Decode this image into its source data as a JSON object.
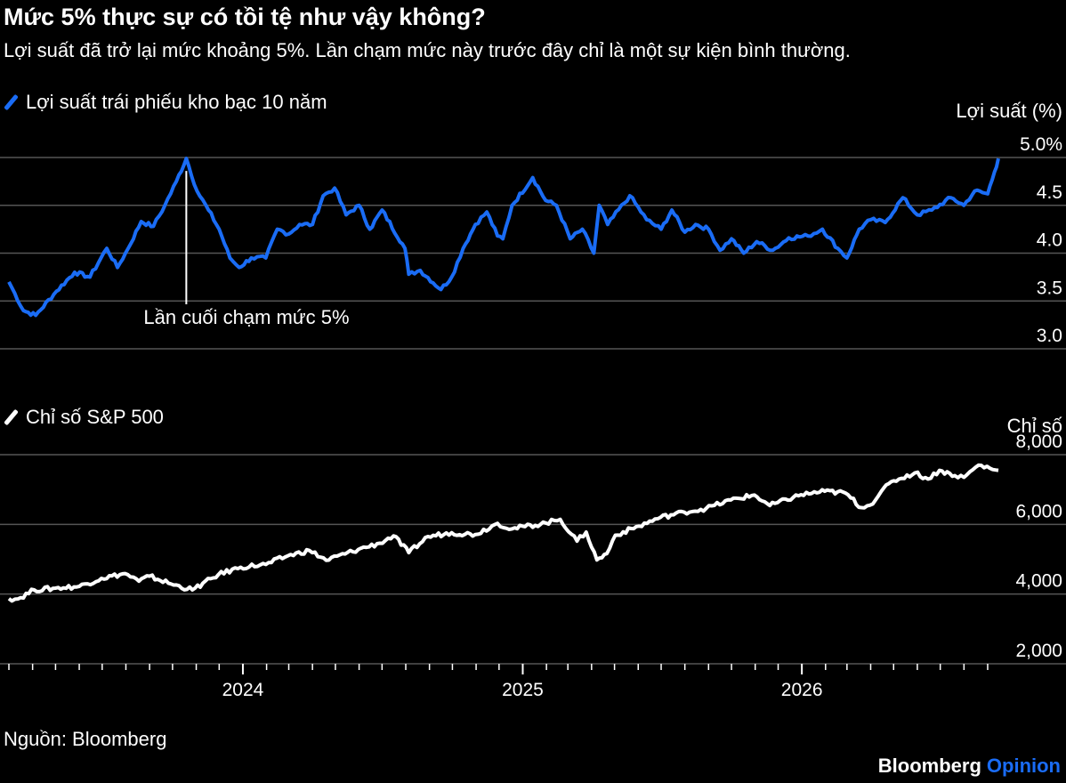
{
  "title": "Mức 5% thực sự có tồi tệ như vậy không?",
  "subtitle": "Lợi suất đã trở lại mức khoảng 5%. Lần chạm mức này trước đây chỉ là một sự kiện bình thường.",
  "source": "Nguồn: Bloomberg",
  "brand": {
    "name": "Bloomberg",
    "suffix": "Opinion"
  },
  "colors": {
    "yield_line": "#1a6cf5",
    "spx_line": "#ffffff",
    "brand_accent": "#1a6cf5",
    "grid": "#555555"
  },
  "x_axis": {
    "ticks": [
      "2024",
      "2025",
      "2026"
    ]
  },
  "chart_data": [
    {
      "type": "line",
      "legend": "Lợi suất trái phiếu kho bạc 10 năm",
      "ylabel": "Lợi suất (%)",
      "ylim": [
        3.0,
        5.0
      ],
      "yticks": [
        "3.0",
        "3.5",
        "4.0",
        "4.5",
        "5.0%"
      ],
      "annotation": {
        "text": "Lần cuối chạm mức 5%",
        "date": "2023-10-19",
        "value": 4.99
      },
      "series": [
        {
          "values": [
            [
              "2023-03-01",
              3.7
            ],
            [
              "2023-03-20",
              3.4
            ],
            [
              "2023-04-05",
              3.35
            ],
            [
              "2023-05-02",
              3.6
            ],
            [
              "2023-05-26",
              3.8
            ],
            [
              "2023-06-15",
              3.75
            ],
            [
              "2023-07-07",
              4.05
            ],
            [
              "2023-07-21",
              3.85
            ],
            [
              "2023-08-04",
              4.05
            ],
            [
              "2023-08-21",
              4.33
            ],
            [
              "2023-09-06",
              4.28
            ],
            [
              "2023-09-21",
              4.5
            ],
            [
              "2023-10-06",
              4.75
            ],
            [
              "2023-10-19",
              4.99
            ],
            [
              "2023-11-02",
              4.65
            ],
            [
              "2023-11-17",
              4.45
            ],
            [
              "2023-12-01",
              4.25
            ],
            [
              "2023-12-15",
              3.95
            ],
            [
              "2023-12-27",
              3.85
            ],
            [
              "2024-01-12",
              3.95
            ],
            [
              "2024-01-31",
              3.95
            ],
            [
              "2024-02-15",
              4.25
            ],
            [
              "2024-03-01",
              4.2
            ],
            [
              "2024-03-15",
              4.3
            ],
            [
              "2024-04-01",
              4.3
            ],
            [
              "2024-04-15",
              4.6
            ],
            [
              "2024-04-30",
              4.68
            ],
            [
              "2024-05-15",
              4.4
            ],
            [
              "2024-06-01",
              4.5
            ],
            [
              "2024-06-15",
              4.25
            ],
            [
              "2024-07-01",
              4.45
            ],
            [
              "2024-07-31",
              4.05
            ],
            [
              "2024-08-05",
              3.78
            ],
            [
              "2024-08-20",
              3.82
            ],
            [
              "2024-09-16",
              3.62
            ],
            [
              "2024-09-30",
              3.75
            ],
            [
              "2024-10-15",
              4.05
            ],
            [
              "2024-10-31",
              4.3
            ],
            [
              "2024-11-15",
              4.43
            ],
            [
              "2024-11-29",
              4.18
            ],
            [
              "2024-12-06",
              4.15
            ],
            [
              "2024-12-18",
              4.5
            ],
            [
              "2025-01-14",
              4.79
            ],
            [
              "2025-01-31",
              4.55
            ],
            [
              "2025-02-14",
              4.5
            ],
            [
              "2025-03-04",
              4.15
            ],
            [
              "2025-03-20",
              4.25
            ],
            [
              "2025-04-04",
              4.0
            ],
            [
              "2025-04-11",
              4.5
            ],
            [
              "2025-04-22",
              4.3
            ],
            [
              "2025-05-21",
              4.6
            ],
            [
              "2025-06-12",
              4.35
            ],
            [
              "2025-07-01",
              4.25
            ],
            [
              "2025-07-15",
              4.45
            ],
            [
              "2025-08-01",
              4.22
            ],
            [
              "2025-08-15",
              4.3
            ],
            [
              "2025-09-01",
              4.25
            ],
            [
              "2025-09-16",
              4.03
            ],
            [
              "2025-10-01",
              4.15
            ],
            [
              "2025-10-17",
              4.0
            ],
            [
              "2025-11-03",
              4.12
            ],
            [
              "2025-11-24",
              4.03
            ],
            [
              "2025-12-15",
              4.16
            ],
            [
              "2026-01-09",
              4.18
            ],
            [
              "2026-01-28",
              4.25
            ],
            [
              "2026-02-17",
              4.05
            ],
            [
              "2026-03-01",
              3.95
            ],
            [
              "2026-03-17",
              4.25
            ],
            [
              "2026-04-01",
              4.35
            ],
            [
              "2026-04-20",
              4.32
            ],
            [
              "2026-05-13",
              4.58
            ],
            [
              "2026-06-01",
              4.4
            ],
            [
              "2026-06-20",
              4.45
            ],
            [
              "2026-07-15",
              4.58
            ],
            [
              "2026-08-01",
              4.5
            ],
            [
              "2026-08-15",
              4.65
            ],
            [
              "2026-09-01",
              4.62
            ],
            [
              "2026-09-10",
              4.85
            ],
            [
              "2026-09-15",
              4.99
            ]
          ]
        }
      ]
    },
    {
      "type": "line",
      "legend": "Chỉ số S&P 500",
      "ylabel": "Chỉ số",
      "ylim": [
        2000,
        8000
      ],
      "yticks": [
        "2,000",
        "4,000",
        "6,000",
        "8,000"
      ],
      "series": [
        {
          "values": [
            [
              "2023-03-01",
              3870
            ],
            [
              "2023-03-13",
              3860
            ],
            [
              "2023-04-03",
              4120
            ],
            [
              "2023-05-01",
              4170
            ],
            [
              "2023-06-01",
              4220
            ],
            [
              "2023-06-30",
              4450
            ],
            [
              "2023-07-31",
              4590
            ],
            [
              "2023-08-18",
              4370
            ],
            [
              "2023-09-01",
              4515
            ],
            [
              "2023-09-29",
              4290
            ],
            [
              "2023-10-27",
              4120
            ],
            [
              "2023-11-30",
              4560
            ],
            [
              "2023-12-29",
              4770
            ],
            [
              "2024-01-31",
              4850
            ],
            [
              "2024-02-29",
              5100
            ],
            [
              "2024-03-28",
              5250
            ],
            [
              "2024-04-19",
              4970
            ],
            [
              "2024-05-31",
              5280
            ],
            [
              "2024-06-28",
              5460
            ],
            [
              "2024-07-16",
              5670
            ],
            [
              "2024-08-05",
              5190
            ],
            [
              "2024-08-30",
              5650
            ],
            [
              "2024-09-30",
              5760
            ],
            [
              "2024-10-31",
              5710
            ],
            [
              "2024-11-29",
              6030
            ],
            [
              "2024-12-18",
              5870
            ],
            [
              "2025-01-31",
              6040
            ],
            [
              "2025-02-19",
              6145
            ],
            [
              "2025-03-13",
              5520
            ],
            [
              "2025-03-25",
              5780
            ],
            [
              "2025-04-08",
              4980
            ],
            [
              "2025-04-21",
              5160
            ],
            [
              "2025-05-02",
              5690
            ],
            [
              "2025-06-02",
              5950
            ],
            [
              "2025-06-30",
              6200
            ],
            [
              "2025-07-31",
              6350
            ],
            [
              "2025-08-29",
              6460
            ],
            [
              "2025-09-30",
              6700
            ],
            [
              "2025-10-31",
              6840
            ],
            [
              "2025-11-20",
              6540
            ],
            [
              "2025-12-31",
              6850
            ],
            [
              "2026-01-31",
              6950
            ],
            [
              "2026-02-27",
              6900
            ],
            [
              "2026-03-20",
              6480
            ],
            [
              "2026-03-31",
              6550
            ],
            [
              "2026-04-15",
              6950
            ],
            [
              "2026-05-01",
              7250
            ],
            [
              "2026-05-29",
              7480
            ],
            [
              "2026-06-15",
              7300
            ],
            [
              "2026-06-30",
              7550
            ],
            [
              "2026-07-20",
              7400
            ],
            [
              "2026-08-01",
              7350
            ],
            [
              "2026-08-20",
              7700
            ],
            [
              "2026-09-15",
              7550
            ]
          ]
        }
      ]
    }
  ]
}
